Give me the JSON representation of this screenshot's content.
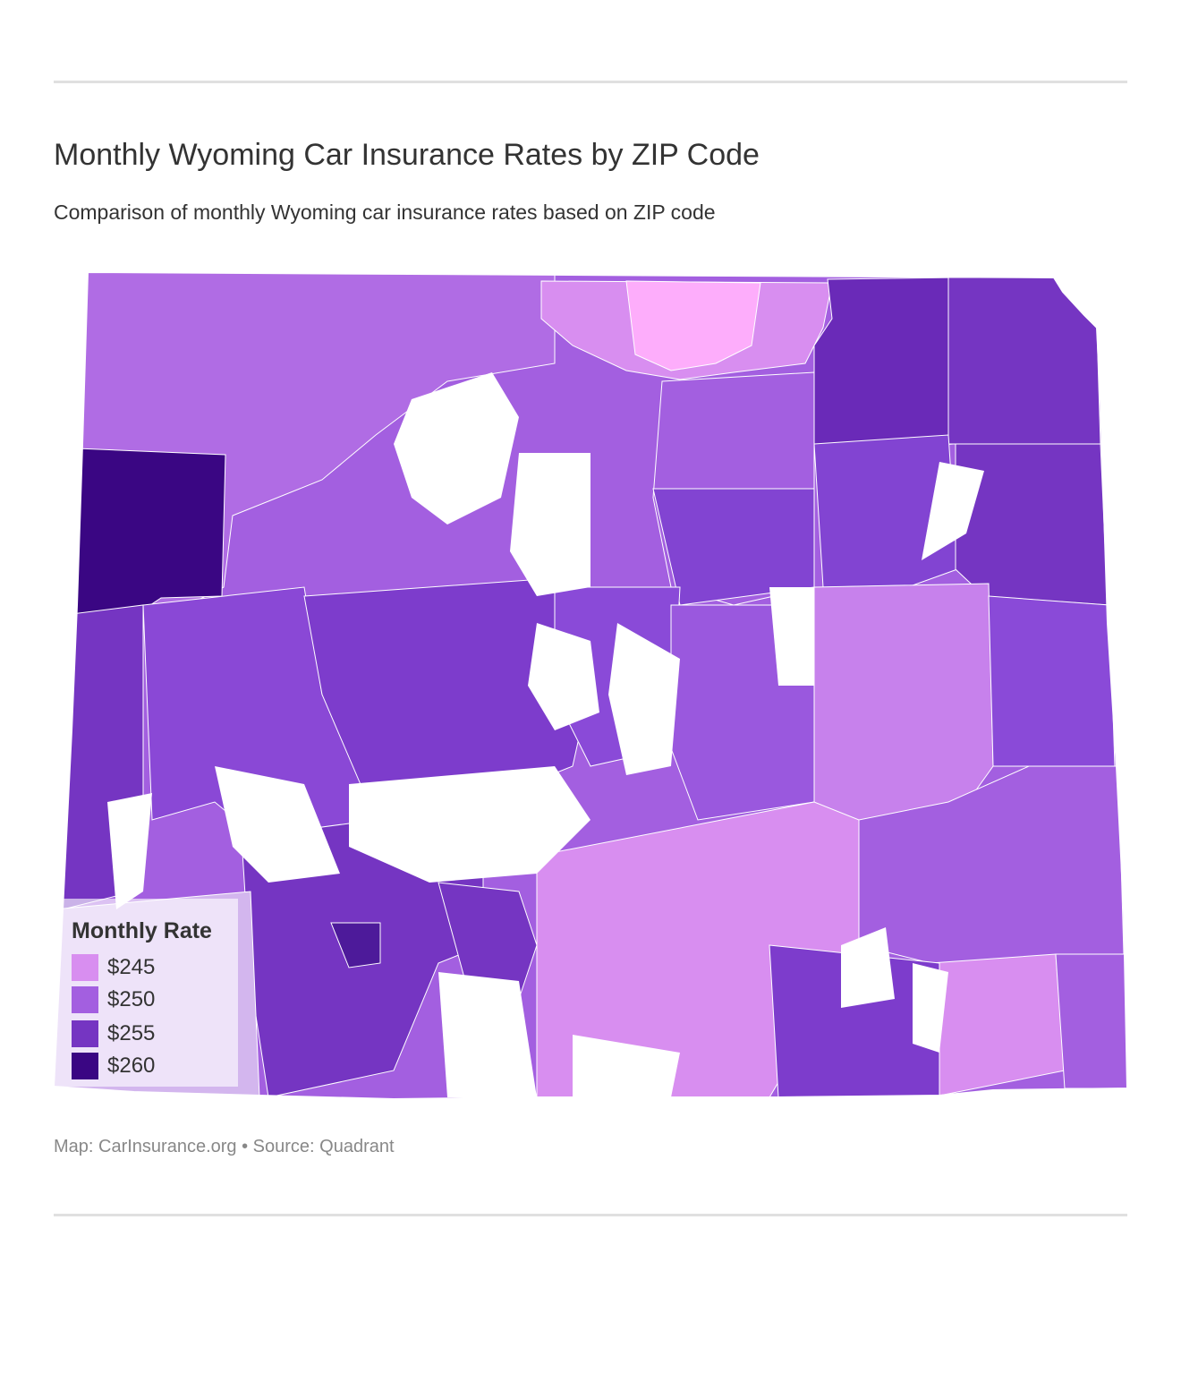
{
  "title": "Monthly Wyoming Car Insurance Rates by ZIP Code",
  "subtitle": "Comparison of monthly Wyoming car insurance rates based on ZIP code",
  "legend": {
    "title": "Monthly Rate",
    "items": [
      {
        "label": "$245",
        "color": "#d88ef0"
      },
      {
        "label": "$250",
        "color": "#a35fe0"
      },
      {
        "label": "$255",
        "color": "#7535c2"
      },
      {
        "label": "$260",
        "color": "#3a0683"
      }
    ]
  },
  "colors": {
    "rate_245": "#d88ef0",
    "rate_250": "#a35fe0",
    "rate_255": "#7535c2",
    "rate_260": "#3a0683",
    "lowest_light_pink": "#fdadfb",
    "no_data": "#ffffff",
    "border": "#ffffff"
  },
  "source": "Map: CarInsurance.org • Source: Quadrant"
}
